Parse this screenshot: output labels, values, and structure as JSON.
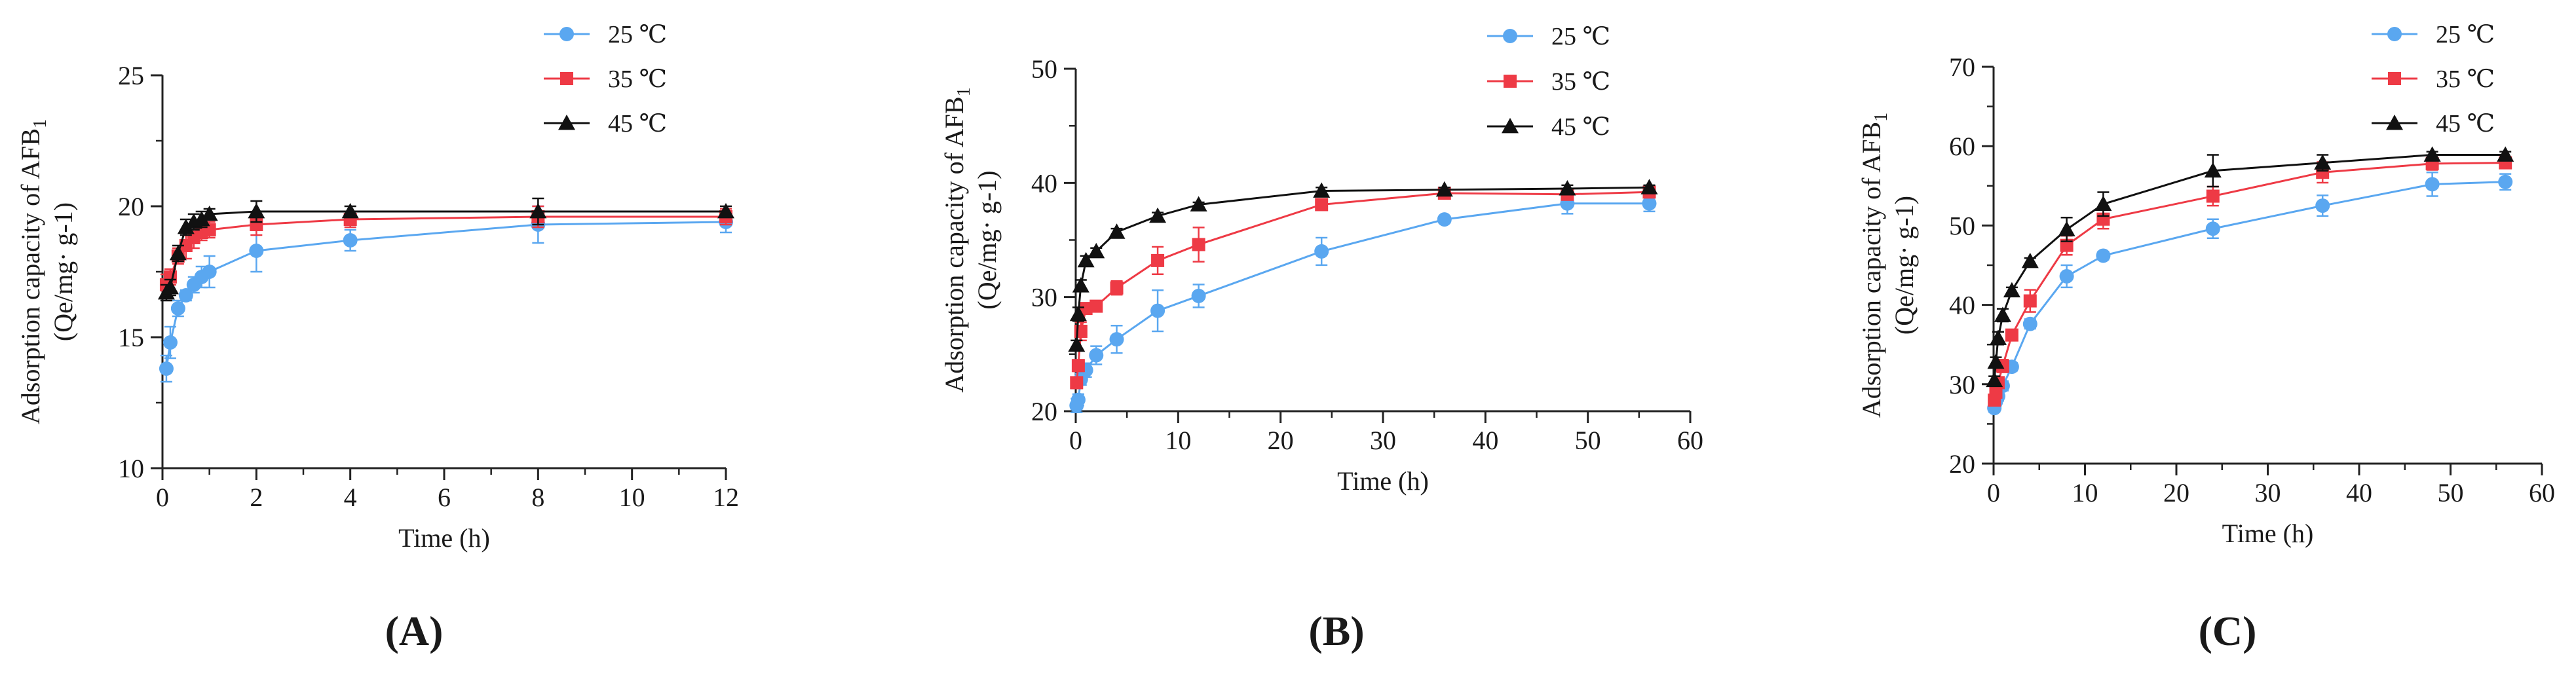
{
  "figure": {
    "panel_labels": [
      "(A)",
      "(B)",
      "(C)"
    ]
  },
  "colors": {
    "s25": "#5aa7f0",
    "s35": "#ee3a45",
    "s45": "#111111"
  },
  "chart_data": [
    {
      "type": "line",
      "panel": "(A)",
      "xlabel": "Time (h)",
      "ylabel_line1": "Adsorption capacity of AFB",
      "ylabel_sub": "1",
      "ylabel_line2": "(Qe/mg· g-1)",
      "xlim": [
        0,
        12
      ],
      "ylim": [
        10,
        25
      ],
      "xticks": [
        0,
        2,
        4,
        6,
        8,
        10,
        12
      ],
      "yticks": [
        10,
        15,
        20,
        25
      ],
      "legend": [
        "25 ℃",
        "35 ℃",
        "45 ℃"
      ],
      "series": [
        {
          "name": "25 ℃",
          "marker": "circle",
          "x": [
            0.083,
            0.167,
            0.333,
            0.5,
            0.667,
            0.833,
            1,
            2,
            4,
            8,
            12
          ],
          "y": [
            13.8,
            14.8,
            16.1,
            16.6,
            17.0,
            17.3,
            17.5,
            18.3,
            18.7,
            19.3,
            19.4
          ],
          "err": [
            0.5,
            0.6,
            0.3,
            0.2,
            0.3,
            0.4,
            0.6,
            0.8,
            0.4,
            0.7,
            0.4
          ]
        },
        {
          "name": "35 ℃",
          "marker": "square",
          "x": [
            0.083,
            0.167,
            0.333,
            0.5,
            0.667,
            0.833,
            1,
            2,
            4,
            8,
            12
          ],
          "y": [
            17.0,
            17.3,
            18.1,
            18.5,
            18.8,
            19.0,
            19.1,
            19.3,
            19.5,
            19.6,
            19.6
          ],
          "err": [
            0.4,
            0.3,
            0.3,
            0.5,
            0.4,
            0.3,
            0.3,
            0.4,
            0.3,
            0.4,
            0.3
          ]
        },
        {
          "name": "45 ℃",
          "marker": "triangle",
          "x": [
            0.083,
            0.167,
            0.333,
            0.5,
            0.667,
            0.833,
            1,
            2,
            4,
            8,
            12
          ],
          "y": [
            16.7,
            16.9,
            18.2,
            19.2,
            19.4,
            19.5,
            19.7,
            19.8,
            19.8,
            19.8,
            19.8
          ],
          "err": [
            0.3,
            0.3,
            0.3,
            0.3,
            0.3,
            0.3,
            0.2,
            0.4,
            0.2,
            0.5,
            0.2
          ]
        }
      ]
    },
    {
      "type": "line",
      "panel": "(B)",
      "xlabel": "Time (h)",
      "ylabel_line1": "Adsorption capacity of AFB",
      "ylabel_sub": "1",
      "ylabel_line2": "(Qe/mg· g-1)",
      "xlim": [
        0,
        60
      ],
      "ylim": [
        20,
        50
      ],
      "xticks": [
        0,
        10,
        20,
        30,
        40,
        50,
        60
      ],
      "yticks": [
        20,
        30,
        40,
        50
      ],
      "legend": [
        "25 ℃",
        "35 ℃",
        "45 ℃"
      ],
      "series": [
        {
          "name": "25 ℃",
          "marker": "circle",
          "x": [
            0.083,
            0.25,
            0.5,
            1,
            2,
            4,
            8,
            12,
            24,
            36,
            48,
            56
          ],
          "y": [
            20.5,
            21.0,
            22.8,
            23.6,
            24.9,
            26.3,
            28.8,
            30.1,
            34.0,
            36.8,
            38.2,
            38.2
          ],
          "err": [
            0.6,
            0.5,
            0.5,
            0.6,
            0.8,
            1.2,
            1.8,
            1.0,
            1.2,
            0.3,
            0.9,
            0.7
          ]
        },
        {
          "name": "35 ℃",
          "marker": "square",
          "x": [
            0.083,
            0.25,
            0.5,
            1,
            2,
            4,
            8,
            12,
            24,
            36,
            48,
            56
          ],
          "y": [
            22.5,
            24.0,
            27.0,
            29.0,
            29.2,
            30.8,
            33.2,
            34.6,
            38.1,
            39.1,
            39.0,
            39.2
          ],
          "err": [
            0.5,
            0.5,
            0.8,
            0.4,
            0.4,
            0.6,
            1.2,
            1.5,
            0.4,
            0.3,
            0.4,
            0.3
          ]
        },
        {
          "name": "45 ℃",
          "marker": "triangle",
          "x": [
            0.083,
            0.25,
            0.5,
            1,
            2,
            4,
            8,
            12,
            24,
            36,
            48,
            56
          ],
          "y": [
            25.8,
            28.5,
            31.0,
            33.2,
            34.0,
            35.7,
            37.1,
            38.1,
            39.3,
            39.4,
            39.5,
            39.6
          ],
          "err": [
            0.4,
            0.6,
            0.5,
            0.4,
            0.3,
            0.3,
            0.3,
            0.2,
            0.3,
            0.2,
            0.3,
            0.2
          ]
        }
      ]
    },
    {
      "type": "line",
      "panel": "(C)",
      "xlabel": "Time (h)",
      "ylabel_line1": "Adsorption capacity of AFB",
      "ylabel_sub": "1",
      "ylabel_line2": "(Qe/mg· g-1)",
      "xlim": [
        0,
        60
      ],
      "ylim": [
        20,
        70
      ],
      "xticks": [
        0,
        10,
        20,
        30,
        40,
        50,
        60
      ],
      "yticks": [
        20,
        30,
        40,
        50,
        60,
        70
      ],
      "legend": [
        "25 ℃",
        "35 ℃",
        "45 ℃"
      ],
      "series": [
        {
          "name": "25 ℃",
          "marker": "circle",
          "x": [
            0.083,
            0.25,
            0.5,
            1,
            2,
            4,
            8,
            12,
            24,
            36,
            48,
            56
          ],
          "y": [
            27.0,
            27.8,
            28.5,
            29.8,
            32.2,
            37.6,
            43.6,
            46.2,
            49.6,
            52.5,
            55.2,
            55.5
          ],
          "err": [
            0.5,
            0.5,
            0.6,
            0.6,
            0.5,
            0.6,
            1.4,
            0.5,
            1.2,
            1.3,
            1.5,
            1.0
          ]
        },
        {
          "name": "35 ℃",
          "marker": "square",
          "x": [
            0.083,
            0.25,
            0.5,
            1,
            2,
            4,
            8,
            12,
            24,
            36,
            48,
            56
          ],
          "y": [
            28.0,
            29.0,
            30.2,
            32.3,
            36.2,
            40.5,
            47.5,
            50.8,
            53.7,
            56.7,
            57.8,
            57.9
          ],
          "err": [
            0.6,
            0.5,
            0.6,
            0.8,
            0.6,
            1.4,
            1.2,
            1.2,
            1.2,
            1.3,
            0.8,
            0.7
          ]
        },
        {
          "name": "45 ℃",
          "marker": "triangle",
          "x": [
            0.083,
            0.25,
            0.5,
            1,
            2,
            4,
            8,
            12,
            24,
            36,
            48,
            56
          ],
          "y": [
            30.5,
            32.8,
            35.8,
            38.7,
            41.8,
            45.5,
            49.5,
            52.7,
            56.9,
            57.9,
            58.9,
            58.9
          ],
          "err": [
            0.5,
            0.6,
            0.8,
            0.8,
            0.4,
            0.4,
            1.5,
            1.5,
            2.0,
            1.0,
            0.4,
            0.4
          ]
        }
      ]
    }
  ]
}
